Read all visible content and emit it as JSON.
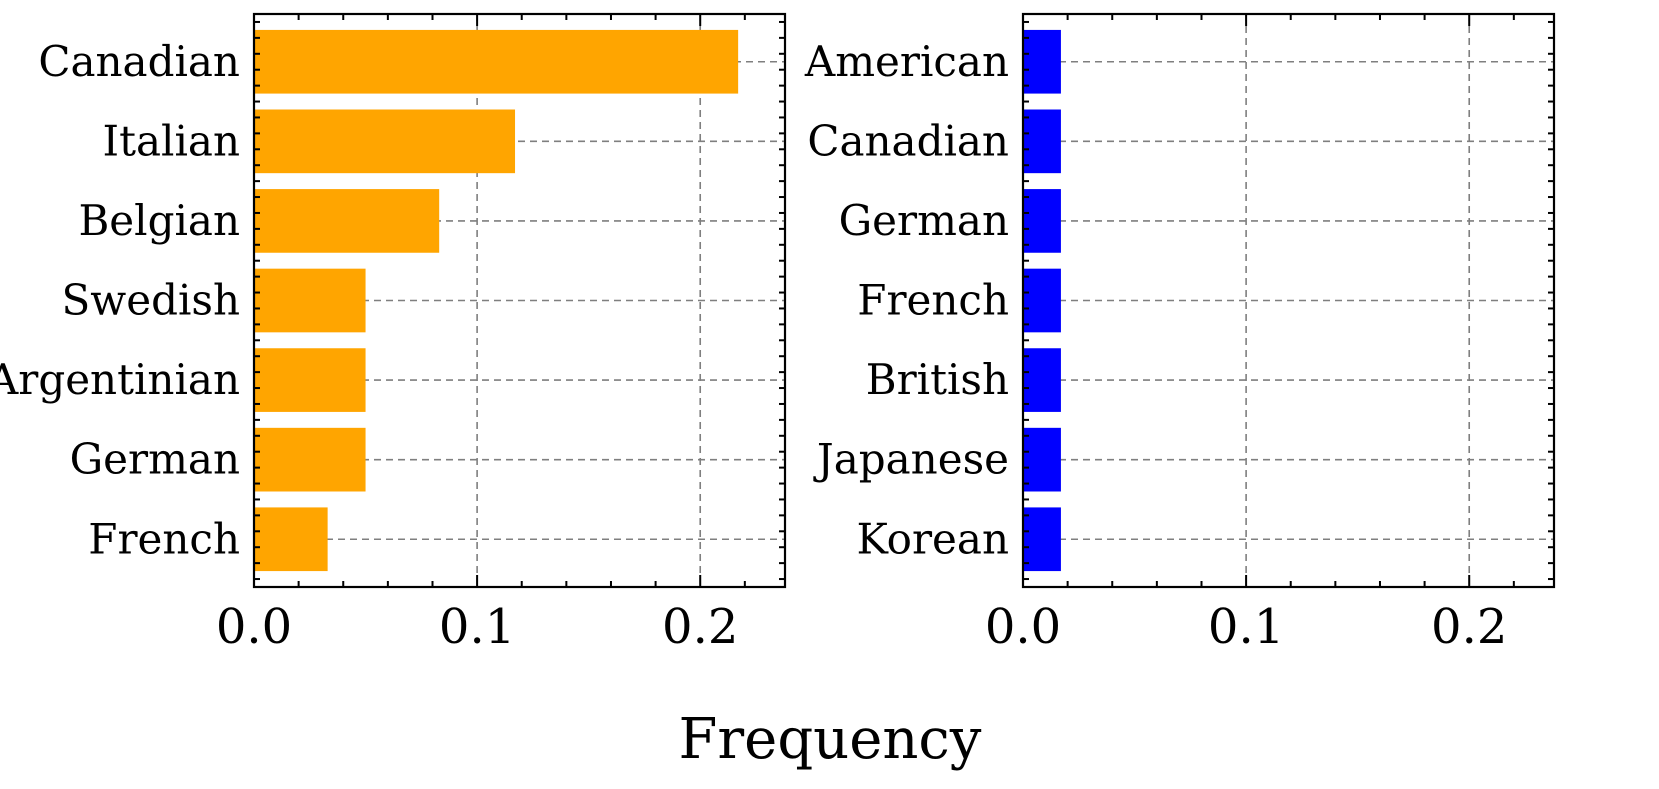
{
  "chart_data": [
    {
      "type": "bar",
      "orientation": "horizontal",
      "categories": [
        "Canadian",
        "Italian",
        "Belgian",
        "Swedish",
        "Argentinian",
        "German",
        "French"
      ],
      "values": [
        0.217,
        0.117,
        0.083,
        0.05,
        0.05,
        0.05,
        0.033
      ],
      "color": "#FFA500",
      "xlim": [
        0,
        0.238
      ],
      "xticks": [
        0.0,
        0.1,
        0.2
      ],
      "xtick_labels": [
        "0.0",
        "0.1",
        "0.2"
      ],
      "grid": true
    },
    {
      "type": "bar",
      "orientation": "horizontal",
      "categories": [
        "American",
        "Canadian",
        "German",
        "French",
        "British",
        "Japanese",
        "Korean"
      ],
      "values": [
        0.017,
        0.017,
        0.017,
        0.017,
        0.017,
        0.017,
        0.017
      ],
      "color": "#0000FF",
      "xlim": [
        0,
        0.238
      ],
      "xticks": [
        0.0,
        0.1,
        0.2
      ],
      "xtick_labels": [
        "0.0",
        "0.1",
        "0.2"
      ],
      "grid": true
    }
  ],
  "xlabel": "Frequency"
}
